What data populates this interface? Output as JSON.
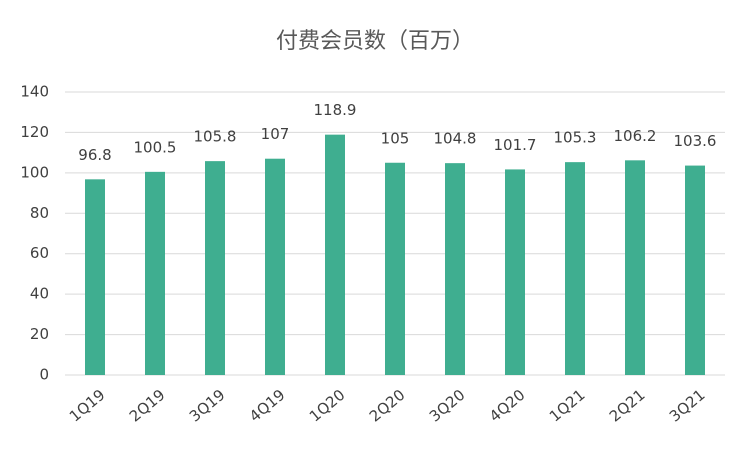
{
  "chart_data": {
    "type": "bar",
    "title": "付费会员数（百万）",
    "categories": [
      "1Q19",
      "2Q19",
      "3Q19",
      "4Q19",
      "1Q20",
      "2Q20",
      "3Q20",
      "4Q20",
      "1Q21",
      "2Q21",
      "3Q21"
    ],
    "values": [
      96.8,
      100.5,
      105.8,
      107,
      118.9,
      105,
      104.8,
      101.7,
      105.3,
      106.2,
      103.6
    ],
    "color": "#3fae90",
    "ylim": [
      0,
      140
    ],
    "yticks": [
      0,
      20,
      40,
      60,
      80,
      100,
      120,
      140
    ],
    "grid": true
  }
}
